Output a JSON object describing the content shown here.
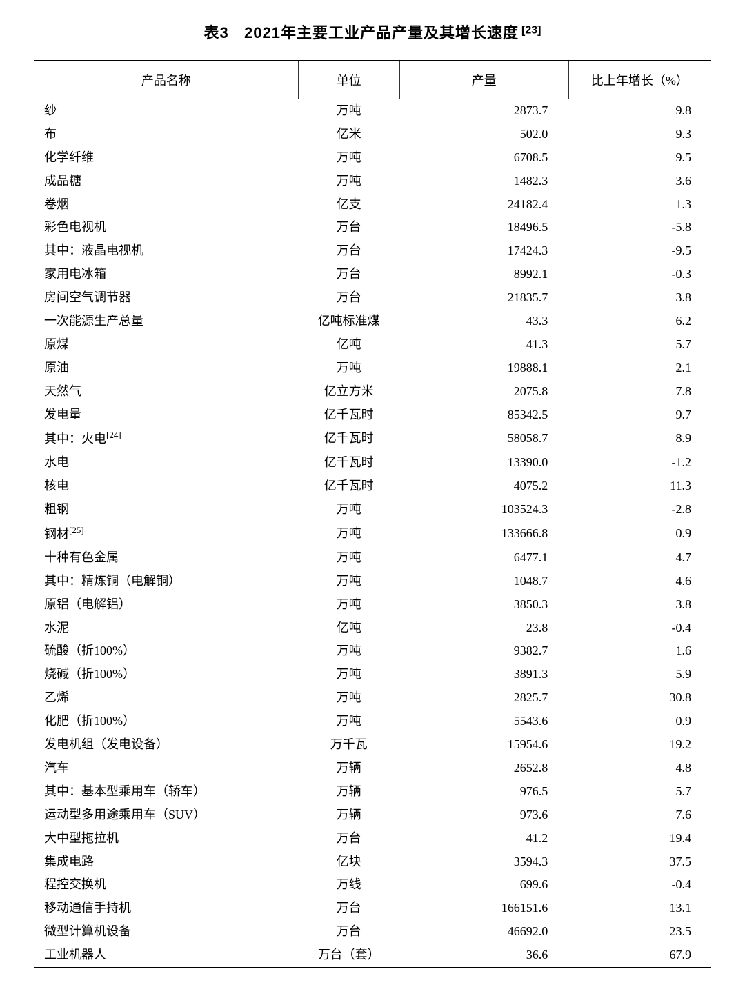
{
  "table": {
    "title_prefix": "表3",
    "title_main": "2021年主要工业产品产量及其增长速度",
    "title_footnote": "[23]",
    "title_fontsize": 22,
    "title_fontweight": "bold",
    "body_fontsize": 18,
    "font_family": "SimSun",
    "text_color": "#000000",
    "background_color": "#ffffff",
    "border_color": "#000000",
    "top_border_width": 2,
    "header_bottom_border_width": 1,
    "bottom_border_width": 2,
    "columns": [
      {
        "key": "name",
        "label": "产品名称",
        "align": "left",
        "width_pct": 39
      },
      {
        "key": "unit",
        "label": "单位",
        "align": "center",
        "width_pct": 15
      },
      {
        "key": "output",
        "label": "产量",
        "align": "right",
        "width_pct": 25
      },
      {
        "key": "growth",
        "label": "比上年增长（%）",
        "align": "right",
        "width_pct": 21
      }
    ],
    "rows": [
      {
        "name": "纱",
        "sup": "",
        "indent": 0,
        "unit": "万吨",
        "output": "2873.7",
        "growth": "9.8"
      },
      {
        "name": "布",
        "sup": "",
        "indent": 0,
        "unit": "亿米",
        "output": "502.0",
        "growth": "9.3"
      },
      {
        "name": "化学纤维",
        "sup": "",
        "indent": 0,
        "unit": "万吨",
        "output": "6708.5",
        "growth": "9.5"
      },
      {
        "name": "成品糖",
        "sup": "",
        "indent": 0,
        "unit": "万吨",
        "output": "1482.3",
        "growth": "3.6"
      },
      {
        "name": "卷烟",
        "sup": "",
        "indent": 0,
        "unit": "亿支",
        "output": "24182.4",
        "growth": "1.3"
      },
      {
        "name": "彩色电视机",
        "sup": "",
        "indent": 0,
        "unit": "万台",
        "output": "18496.5",
        "growth": "-5.8"
      },
      {
        "name": "其中：液晶电视机",
        "sup": "",
        "indent": 1,
        "unit": "万台",
        "output": "17424.3",
        "growth": "-9.5"
      },
      {
        "name": "家用电冰箱",
        "sup": "",
        "indent": 0,
        "unit": "万台",
        "output": "8992.1",
        "growth": "-0.3"
      },
      {
        "name": "房间空气调节器",
        "sup": "",
        "indent": 0,
        "unit": "万台",
        "output": "21835.7",
        "growth": "3.8"
      },
      {
        "name": "一次能源生产总量",
        "sup": "",
        "indent": 0,
        "unit": "亿吨标准煤",
        "output": "43.3",
        "growth": "6.2"
      },
      {
        "name": "原煤",
        "sup": "",
        "indent": 0,
        "unit": "亿吨",
        "output": "41.3",
        "growth": "5.7"
      },
      {
        "name": "原油",
        "sup": "",
        "indent": 0,
        "unit": "万吨",
        "output": "19888.1",
        "growth": "2.1"
      },
      {
        "name": "天然气",
        "sup": "",
        "indent": 0,
        "unit": "亿立方米",
        "output": "2075.8",
        "growth": "7.8"
      },
      {
        "name": "发电量",
        "sup": "",
        "indent": 0,
        "unit": "亿千瓦时",
        "output": "85342.5",
        "growth": "9.7"
      },
      {
        "name": "其中：火电",
        "sup": "[24]",
        "indent": 1,
        "unit": "亿千瓦时",
        "output": "58058.7",
        "growth": "8.9"
      },
      {
        "name": "水电",
        "sup": "",
        "indent": 2,
        "unit": "亿千瓦时",
        "output": "13390.0",
        "growth": "-1.2"
      },
      {
        "name": "核电",
        "sup": "",
        "indent": 2,
        "unit": "亿千瓦时",
        "output": "4075.2",
        "growth": "11.3"
      },
      {
        "name": "粗钢",
        "sup": "",
        "indent": 0,
        "unit": "万吨",
        "output": "103524.3",
        "growth": "-2.8"
      },
      {
        "name": "钢材",
        "sup": "[25]",
        "indent": 0,
        "unit": "万吨",
        "output": "133666.8",
        "growth": "0.9"
      },
      {
        "name": "十种有色金属",
        "sup": "",
        "indent": 0,
        "unit": "万吨",
        "output": "6477.1",
        "growth": "4.7"
      },
      {
        "name": "其中：精炼铜（电解铜）",
        "sup": "",
        "indent": 1,
        "unit": "万吨",
        "output": "1048.7",
        "growth": "4.6"
      },
      {
        "name": "原铝（电解铝）",
        "sup": "",
        "indent": 2,
        "unit": "万吨",
        "output": "3850.3",
        "growth": "3.8"
      },
      {
        "name": "水泥",
        "sup": "",
        "indent": 0,
        "unit": "亿吨",
        "output": "23.8",
        "growth": "-0.4"
      },
      {
        "name": "硫酸（折100%）",
        "sup": "",
        "indent": 0,
        "unit": "万吨",
        "output": "9382.7",
        "growth": "1.6"
      },
      {
        "name": "烧碱（折100%）",
        "sup": "",
        "indent": 0,
        "unit": "万吨",
        "output": "3891.3",
        "growth": "5.9"
      },
      {
        "name": "乙烯",
        "sup": "",
        "indent": 0,
        "unit": "万吨",
        "output": "2825.7",
        "growth": "30.8"
      },
      {
        "name": "化肥（折100%）",
        "sup": "",
        "indent": 0,
        "unit": "万吨",
        "output": "5543.6",
        "growth": "0.9"
      },
      {
        "name": "发电机组（发电设备）",
        "sup": "",
        "indent": 0,
        "unit": "万千瓦",
        "output": "15954.6",
        "growth": "19.2"
      },
      {
        "name": "汽车",
        "sup": "",
        "indent": 0,
        "unit": "万辆",
        "output": "2652.8",
        "growth": "4.8"
      },
      {
        "name": "其中：基本型乘用车（轿车）",
        "sup": "",
        "indent": 1,
        "unit": "万辆",
        "output": "976.5",
        "growth": "5.7"
      },
      {
        "name": "运动型多用途乘用车（SUV）",
        "sup": "",
        "indent": 2,
        "unit": "万辆",
        "output": "973.6",
        "growth": "7.6"
      },
      {
        "name": "大中型拖拉机",
        "sup": "",
        "indent": 0,
        "unit": "万台",
        "output": "41.2",
        "growth": "19.4"
      },
      {
        "name": "集成电路",
        "sup": "",
        "indent": 0,
        "unit": "亿块",
        "output": "3594.3",
        "growth": "37.5"
      },
      {
        "name": "程控交换机",
        "sup": "",
        "indent": 0,
        "unit": "万线",
        "output": "699.6",
        "growth": "-0.4"
      },
      {
        "name": "移动通信手持机",
        "sup": "",
        "indent": 0,
        "unit": "万台",
        "output": "166151.6",
        "growth": "13.1"
      },
      {
        "name": "微型计算机设备",
        "sup": "",
        "indent": 0,
        "unit": "万台",
        "output": "46692.0",
        "growth": "23.5"
      },
      {
        "name": "工业机器人",
        "sup": "",
        "indent": 0,
        "unit": "万台（套）",
        "output": "36.6",
        "growth": "67.9"
      }
    ]
  }
}
